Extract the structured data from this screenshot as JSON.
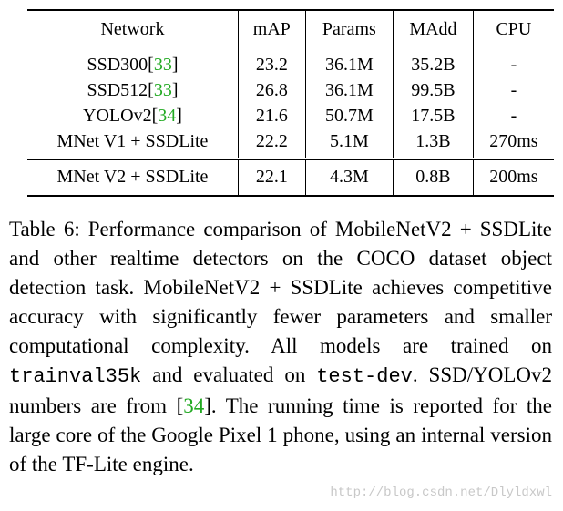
{
  "table": {
    "headers": [
      "Network",
      "mAP",
      "Params",
      "MAdd",
      "CPU"
    ],
    "rows": [
      {
        "network": "SSD300",
        "cite": "33",
        "map": "23.2",
        "params": "36.1M",
        "madd": "35.2B",
        "cpu": "-"
      },
      {
        "network": "SSD512",
        "cite": "33",
        "map": "26.8",
        "params": "36.1M",
        "madd": "99.5B",
        "cpu": "-"
      },
      {
        "network": "YOLOv2",
        "cite": "34",
        "map": "21.6",
        "params": "50.7M",
        "madd": "17.5B",
        "cpu": "-"
      },
      {
        "network": "MNet V1 + SSDLite",
        "cite": "",
        "map": "22.2",
        "params": "5.1M",
        "madd": "1.3B",
        "cpu": "270ms"
      }
    ],
    "ours": {
      "network": "MNet V2 + SSDLite",
      "map": "22.1",
      "params": "4.3M",
      "madd": "0.8B",
      "cpu": "200ms"
    }
  },
  "caption": {
    "p1": "Table 6: Performance comparison of MobileNetV2 + SSDLite and other realtime detectors on the COCO dataset object detection task. MobileNetV2 + SSDLite achieves competitive accuracy with significantly fewer parameters and smaller computational complexity. All models are trained on ",
    "code1": "trainval35k",
    "p2": " and evaluated on ",
    "code2": "test-dev",
    "p3": ". SSD/YOLOv2 numbers are from [",
    "cite": "34",
    "p4": "]. The running time is reported for the large core of the Google Pixel 1 phone, using an internal version of the TF-Lite engine."
  },
  "watermark": "http://blog.csdn.net/Dlyldxwl"
}
